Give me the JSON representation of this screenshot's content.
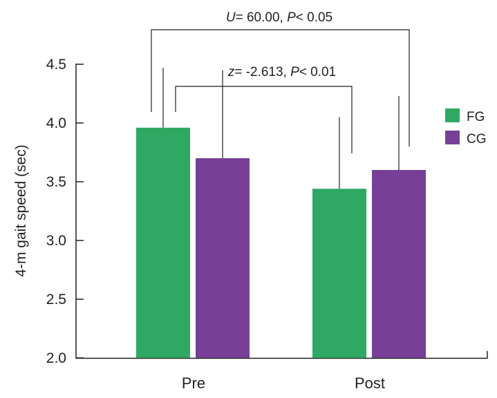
{
  "chart_data": {
    "type": "bar",
    "title": "",
    "xlabel": "",
    "ylabel": "4-m gait speed (sec)",
    "ylim": [
      2.0,
      4.5
    ],
    "yticks": [
      "2.0",
      "2.5",
      "3.0",
      "3.5",
      "4.0",
      "4.5"
    ],
    "categories": [
      "Pre",
      "Post"
    ],
    "series": [
      {
        "name": "FG",
        "color": "#2ea862",
        "values": [
          3.96,
          3.44
        ],
        "error_upper": [
          4.47,
          4.05
        ]
      },
      {
        "name": "CG",
        "color": "#774096",
        "values": [
          3.7,
          3.6
        ],
        "error_upper": [
          4.45,
          4.23
        ]
      }
    ],
    "legend": {
      "position": "right",
      "entries": [
        "FG",
        "CG"
      ]
    },
    "annotations": [
      {
        "name": "between-group",
        "stat_symbol": "U",
        "stat_value": "= 60.00, ",
        "p_symbol": "P",
        "p_value": "< 0.05"
      },
      {
        "name": "within-group",
        "stat_symbol": "z",
        "stat_value": "= -2.613, ",
        "p_symbol": "P",
        "p_value": "< 0.01"
      }
    ]
  }
}
